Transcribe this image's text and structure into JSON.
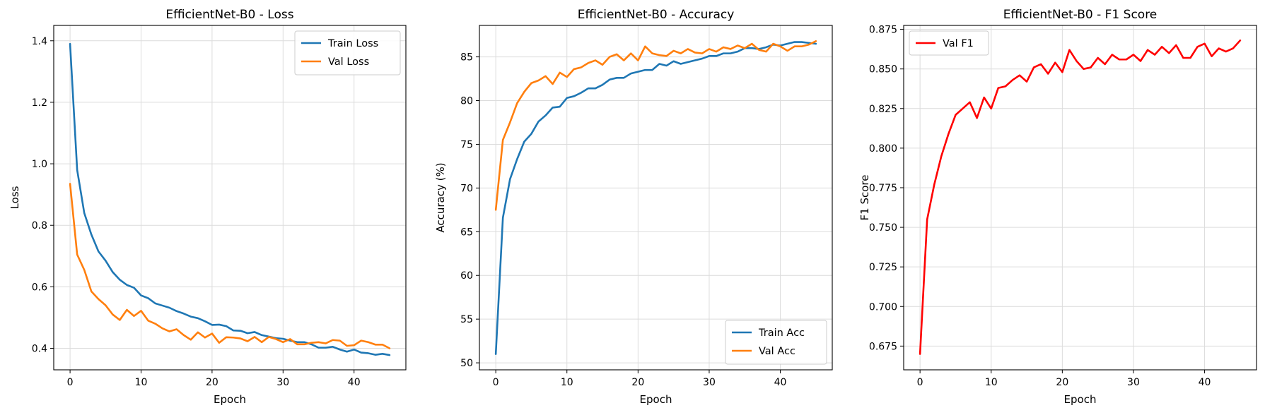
{
  "chart_data": [
    {
      "type": "line",
      "title": "EfficientNet-B0 - Loss",
      "xlabel": "Epoch",
      "ylabel": "Loss",
      "xlim": [
        -2.3,
        47.3
      ],
      "ylim": [
        0.33,
        1.45
      ],
      "xticks": [
        0,
        10,
        20,
        30,
        40
      ],
      "yticks": [
        0.4,
        0.6,
        0.8,
        1.0,
        1.2,
        1.4
      ],
      "ytick_labels": [
        "0.4",
        "0.6",
        "0.8",
        "1.0",
        "1.2",
        "1.4"
      ],
      "grid": true,
      "legend_position": "top-right",
      "series": [
        {
          "name": "Train Loss",
          "color": "#1f77b4",
          "values": [
            1.39,
            0.98,
            0.84,
            0.77,
            0.715,
            0.685,
            0.648,
            0.623,
            0.606,
            0.597,
            0.572,
            0.563,
            0.546,
            0.539,
            0.532,
            0.521,
            0.513,
            0.503,
            0.498,
            0.488,
            0.476,
            0.477,
            0.472,
            0.458,
            0.457,
            0.449,
            0.453,
            0.443,
            0.438,
            0.433,
            0.431,
            0.425,
            0.42,
            0.42,
            0.413,
            0.402,
            0.402,
            0.405,
            0.396,
            0.389,
            0.396,
            0.386,
            0.384,
            0.379,
            0.382,
            0.378
          ]
        },
        {
          "name": "Val Loss",
          "color": "#ff7f0e",
          "values": [
            0.935,
            0.705,
            0.655,
            0.585,
            0.56,
            0.54,
            0.51,
            0.492,
            0.525,
            0.505,
            0.522,
            0.49,
            0.48,
            0.465,
            0.455,
            0.462,
            0.443,
            0.428,
            0.452,
            0.435,
            0.448,
            0.418,
            0.436,
            0.435,
            0.432,
            0.423,
            0.437,
            0.42,
            0.437,
            0.43,
            0.42,
            0.43,
            0.413,
            0.413,
            0.418,
            0.42,
            0.416,
            0.427,
            0.425,
            0.408,
            0.41,
            0.425,
            0.42,
            0.412,
            0.412,
            0.4
          ]
        }
      ]
    },
    {
      "type": "line",
      "title": "EfficientNet-B0 - Accuracy",
      "xlabel": "Epoch",
      "ylabel": "Accuracy (%)",
      "xlim": [
        -2.3,
        47.3
      ],
      "ylim": [
        49.2,
        88.6
      ],
      "xticks": [
        0,
        10,
        20,
        30,
        40
      ],
      "yticks": [
        50,
        55,
        60,
        65,
        70,
        75,
        80,
        85
      ],
      "ytick_labels": [
        "50",
        "55",
        "60",
        "65",
        "70",
        "75",
        "80",
        "85"
      ],
      "grid": true,
      "legend_position": "bottom-right",
      "series": [
        {
          "name": "Train Acc",
          "color": "#1f77b4",
          "values": [
            51.0,
            66.6,
            71.0,
            73.3,
            75.3,
            76.2,
            77.6,
            78.3,
            79.2,
            79.3,
            80.3,
            80.5,
            80.9,
            81.4,
            81.4,
            81.8,
            82.4,
            82.6,
            82.6,
            83.1,
            83.3,
            83.5,
            83.5,
            84.2,
            84.0,
            84.5,
            84.2,
            84.4,
            84.6,
            84.8,
            85.1,
            85.1,
            85.4,
            85.4,
            85.6,
            86.0,
            86.0,
            85.9,
            86.1,
            86.4,
            86.3,
            86.5,
            86.7,
            86.7,
            86.6,
            86.5
          ]
        },
        {
          "name": "Val Acc",
          "color": "#ff7f0e",
          "values": [
            67.5,
            75.5,
            77.5,
            79.7,
            81.0,
            82.0,
            82.3,
            82.8,
            81.9,
            83.2,
            82.7,
            83.6,
            83.8,
            84.3,
            84.6,
            84.1,
            85.0,
            85.3,
            84.6,
            85.4,
            84.6,
            86.2,
            85.4,
            85.2,
            85.1,
            85.7,
            85.4,
            85.9,
            85.5,
            85.4,
            85.9,
            85.6,
            86.1,
            85.9,
            86.3,
            86.0,
            86.5,
            85.8,
            85.6,
            86.5,
            86.2,
            85.7,
            86.2,
            86.2,
            86.4,
            86.8
          ]
        }
      ]
    },
    {
      "type": "line",
      "title": "EfficientNet-B0 - F1 Score",
      "xlabel": "Epoch",
      "ylabel": "F1 Score",
      "xlim": [
        -2.3,
        47.3
      ],
      "ylim": [
        0.66,
        0.8775
      ],
      "xticks": [
        0,
        10,
        20,
        30,
        40
      ],
      "yticks": [
        0.675,
        0.7,
        0.725,
        0.75,
        0.775,
        0.8,
        0.825,
        0.85,
        0.875
      ],
      "ytick_labels": [
        "0.675",
        "0.700",
        "0.725",
        "0.750",
        "0.775",
        "0.800",
        "0.825",
        "0.850",
        "0.875"
      ],
      "grid": true,
      "legend_position": "top-left",
      "series": [
        {
          "name": "Val F1",
          "color": "#ff0000",
          "values": [
            0.67,
            0.755,
            0.777,
            0.795,
            0.809,
            0.821,
            0.825,
            0.829,
            0.819,
            0.832,
            0.825,
            0.838,
            0.839,
            0.843,
            0.846,
            0.842,
            0.851,
            0.853,
            0.847,
            0.854,
            0.848,
            0.862,
            0.855,
            0.85,
            0.851,
            0.857,
            0.853,
            0.859,
            0.856,
            0.856,
            0.859,
            0.855,
            0.862,
            0.859,
            0.864,
            0.86,
            0.865,
            0.857,
            0.857,
            0.864,
            0.866,
            0.858,
            0.863,
            0.861,
            0.863,
            0.868
          ]
        }
      ]
    }
  ]
}
